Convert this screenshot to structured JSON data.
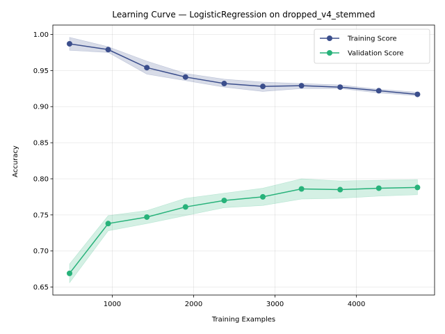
{
  "chart_data": {
    "type": "line",
    "title": "Learning Curve — LogisticRegression on dropped_v4_stemmed",
    "xlabel": "Training Examples",
    "ylabel": "Accuracy",
    "xlim": [
      270,
      4960
    ],
    "ylim": [
      0.639,
      1.013
    ],
    "xticks": [
      1000,
      2000,
      3000,
      4000
    ],
    "yticks": [
      0.65,
      0.7,
      0.75,
      0.8,
      0.85,
      0.9,
      0.95,
      1.0
    ],
    "ytick_labels": [
      "0.65",
      "0.70",
      "0.75",
      "0.80",
      "0.85",
      "0.90",
      "0.95",
      "1.00"
    ],
    "grid": true,
    "legend_position": "top-right",
    "x": [
      475,
      950,
      1425,
      1900,
      2375,
      2850,
      3325,
      3800,
      4275,
      4750
    ],
    "series": [
      {
        "name": "Training Score",
        "color": "#3b4e8c",
        "band_color": "#3b4e8c",
        "values": [
          0.987,
          0.979,
          0.954,
          0.941,
          0.932,
          0.928,
          0.929,
          0.927,
          0.922,
          0.917
        ],
        "lower": [
          0.978,
          0.975,
          0.945,
          0.936,
          0.927,
          0.921,
          0.925,
          0.925,
          0.919,
          0.915
        ],
        "upper": [
          0.996,
          0.983,
          0.963,
          0.946,
          0.938,
          0.934,
          0.932,
          0.93,
          0.924,
          0.92
        ]
      },
      {
        "name": "Validation Score",
        "color": "#27b27a",
        "band_color": "#27b27a",
        "values": [
          0.669,
          0.738,
          0.747,
          0.761,
          0.77,
          0.775,
          0.786,
          0.785,
          0.787,
          0.788
        ],
        "lower": [
          0.656,
          0.728,
          0.738,
          0.749,
          0.76,
          0.763,
          0.772,
          0.773,
          0.776,
          0.778
        ],
        "upper": [
          0.682,
          0.749,
          0.756,
          0.773,
          0.78,
          0.787,
          0.8,
          0.797,
          0.798,
          0.799
        ]
      }
    ]
  }
}
